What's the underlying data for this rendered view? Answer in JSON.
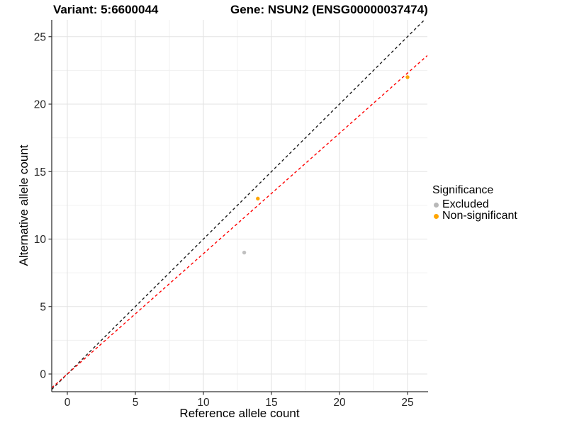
{
  "chart_data": {
    "type": "scatter",
    "title_left": "Variant: 5:6600044",
    "title_right": "Gene: NSUN2 (ENSG00000037474)",
    "xlabel": "Reference allele count",
    "ylabel": "Alternative allele count",
    "xlim": [
      -1.25,
      26.45
    ],
    "ylim": [
      -1.3,
      26.25
    ],
    "x_ticks": [
      0,
      5,
      10,
      15,
      20,
      25
    ],
    "y_ticks": [
      0,
      5,
      10,
      15,
      20,
      25
    ],
    "x_minor_ticks": [
      2.5,
      7.5,
      12.5,
      17.5,
      22.5
    ],
    "y_minor_ticks": [
      2.5,
      7.5,
      12.5,
      17.5,
      22.5
    ],
    "grid": true,
    "points": [
      {
        "x": 13,
        "y": 9,
        "significance": "Excluded",
        "color": "#c0c0c0"
      },
      {
        "x": 14,
        "y": 13,
        "significance": "Non-significant",
        "color": "#ffa500"
      },
      {
        "x": 25,
        "y": 22,
        "significance": "Non-significant",
        "color": "#ffa500"
      }
    ],
    "lines": [
      {
        "name": "identity-line",
        "slope": 1.0,
        "intercept": 0,
        "color": "#1a1a1a",
        "style": "dashed"
      },
      {
        "name": "fit-line",
        "slope": 0.892,
        "intercept": 0,
        "color": "#ff0000",
        "style": "dashed"
      }
    ],
    "legend": {
      "title": "Significance",
      "position": "right",
      "items": [
        {
          "label": "Excluded",
          "color": "#b8b8b8"
        },
        {
          "label": "Non-significant",
          "color": "#ffa500"
        }
      ]
    },
    "colors": {
      "background": "#ffffff",
      "grid_major": "#e3e3e3",
      "grid_minor": "#f0f0f0",
      "axis_line": "#333333",
      "tick_text": "#262626"
    }
  }
}
